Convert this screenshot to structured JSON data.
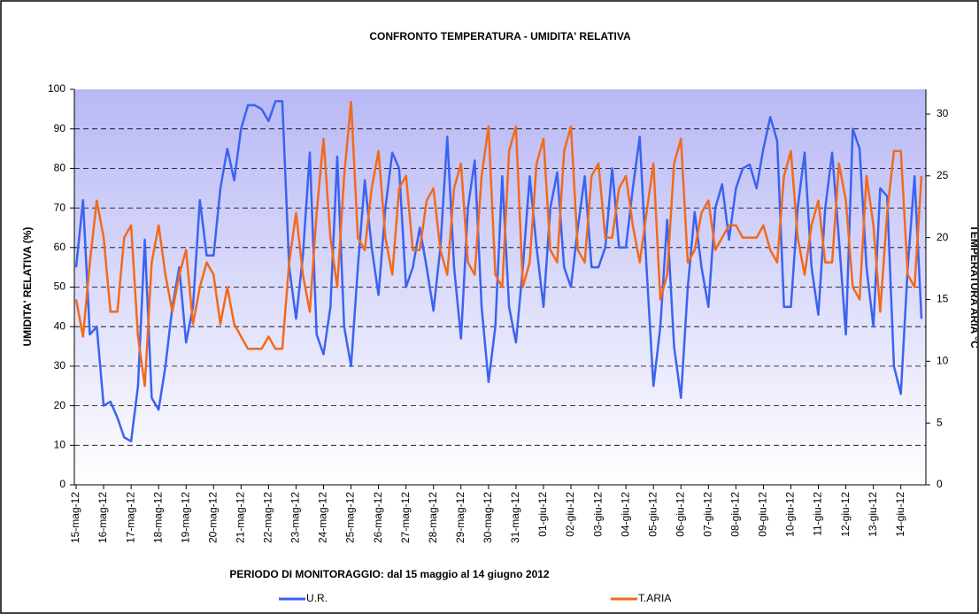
{
  "chart_data": {
    "type": "line",
    "title": "CONFRONTO TEMPERATURA - UMIDITA' RELATIVA",
    "x_label": "PERIODO DI MONITORAGGIO: dal 15 maggio al 14 giugno 2012",
    "y_label": "UMIDITA' RELATIVA (%)",
    "y2_label": "TEMPERATURA ARIA °C",
    "categories": [
      "15-mag-12",
      null,
      null,
      null,
      "16-mag-12",
      null,
      null,
      null,
      "17-mag-12",
      null,
      null,
      null,
      "18-mag-12",
      null,
      null,
      null,
      "19-mag-12",
      null,
      null,
      null,
      "20-mag-12",
      null,
      null,
      null,
      "21-mag-12",
      null,
      null,
      null,
      "22-mag-12",
      null,
      null,
      null,
      "23-mag-12",
      null,
      null,
      null,
      "24-mag-12",
      null,
      null,
      null,
      "25-mag-12",
      null,
      null,
      null,
      "26-mag-12",
      null,
      null,
      null,
      "27-mag-12",
      null,
      null,
      null,
      "28-mag-12",
      null,
      null,
      null,
      "29-mag-12",
      null,
      null,
      null,
      "30-mag-12",
      null,
      null,
      null,
      "31-mag-12",
      null,
      null,
      null,
      "01-giu-12",
      null,
      null,
      null,
      "02-giu-12",
      null,
      null,
      null,
      "03-giu-12",
      null,
      null,
      null,
      "04-giu-12",
      null,
      null,
      null,
      "05-giu-12",
      null,
      null,
      null,
      "06-giu-12",
      null,
      null,
      null,
      "07-giu-12",
      null,
      null,
      null,
      "08-giu-12",
      null,
      null,
      null,
      "09-giu-12",
      null,
      null,
      null,
      "10-giu-12",
      null,
      null,
      null,
      "11-giu-12",
      null,
      null,
      null,
      "12-giu-12",
      null,
      null,
      null,
      "13-giu-12",
      null,
      null,
      null,
      "14-giu-12",
      null,
      null,
      null
    ],
    "series": [
      {
        "name": "U.R.",
        "color": "#3b63f0",
        "values": [
          55,
          72,
          38,
          40,
          20,
          21,
          17,
          12,
          11,
          25,
          62,
          22,
          19,
          30,
          45,
          55,
          36,
          45,
          72,
          58,
          58,
          75,
          85,
          77,
          90,
          96,
          96,
          95,
          92,
          97,
          97,
          55,
          42,
          58,
          84,
          38,
          33,
          45,
          83,
          40,
          30,
          55,
          77,
          60,
          48,
          70,
          84,
          80,
          50,
          55,
          65,
          55,
          44,
          60,
          88,
          55,
          37,
          70,
          82,
          45,
          26,
          40,
          78,
          45,
          36,
          55,
          78,
          60,
          45,
          70,
          79,
          55,
          50,
          65,
          78,
          55,
          55,
          60,
          80,
          60,
          60,
          75,
          88,
          55,
          25,
          40,
          67,
          35,
          22,
          50,
          69,
          55,
          45,
          70,
          76,
          62,
          75,
          80,
          81,
          75,
          85,
          93,
          87,
          45,
          45,
          70,
          84,
          55,
          43,
          70,
          84,
          62,
          38,
          90,
          85,
          55,
          40,
          75,
          73,
          30,
          23,
          55,
          78,
          42
        ]
      },
      {
        "name": "T.ARIA",
        "color": "#f26a1b",
        "axis": "y2",
        "values": [
          15,
          12,
          18,
          23,
          20,
          14,
          14,
          20,
          21,
          12,
          8,
          18,
          21,
          17,
          14,
          17,
          19,
          13,
          16,
          18,
          17,
          13,
          16,
          13,
          12,
          11,
          11,
          11,
          12,
          11,
          11,
          18,
          22,
          17,
          14,
          22,
          28,
          20,
          16,
          25,
          31,
          20,
          19,
          24,
          27,
          20,
          17,
          24,
          25,
          19,
          19,
          23,
          24,
          19,
          17,
          24,
          26,
          18,
          17,
          25,
          29,
          17,
          16,
          27,
          29,
          16,
          18,
          26,
          28,
          19,
          18,
          27,
          29,
          19,
          18,
          25,
          26,
          20,
          20,
          24,
          25,
          21,
          18,
          22,
          26,
          15,
          17,
          26,
          28,
          18,
          19,
          22,
          23,
          19,
          20,
          21,
          21,
          20,
          20,
          20,
          21,
          19,
          18,
          25,
          27,
          20,
          17,
          21,
          23,
          18,
          18,
          26,
          23,
          16,
          15,
          25,
          21,
          14,
          22,
          27,
          27,
          17,
          16,
          25
        ]
      }
    ],
    "ylim": [
      0,
      100
    ],
    "yticks": [
      0,
      10,
      20,
      30,
      40,
      50,
      60,
      70,
      80,
      90,
      100
    ],
    "y2lim": [
      0,
      32
    ],
    "y2ticks": [
      0,
      5,
      10,
      15,
      20,
      25,
      30
    ],
    "grid": true
  }
}
